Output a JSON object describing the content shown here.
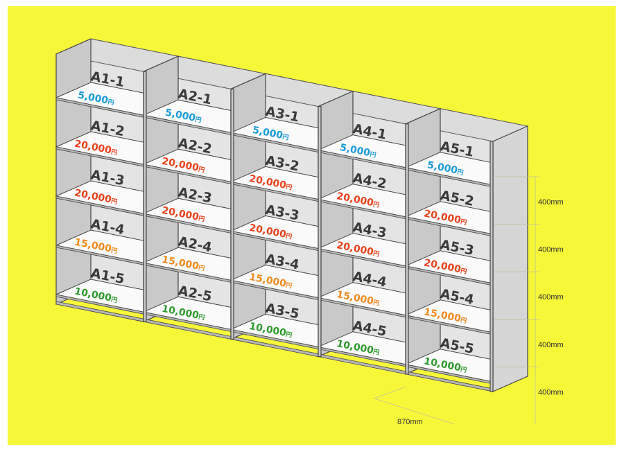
{
  "colors": {
    "background": "#f7f73a",
    "frame": "#ffffff",
    "price_5000": "#1a9bd7",
    "price_20000": "#e8421c",
    "price_15000": "#f0891e",
    "price_10000": "#2e9a2e"
  },
  "units": [
    {
      "id": "A1",
      "cells": [
        {
          "code": "A1-1",
          "price": "5,000",
          "tier": "price_5000"
        },
        {
          "code": "A1-2",
          "price": "20,000",
          "tier": "price_20000"
        },
        {
          "code": "A1-3",
          "price": "20,000",
          "tier": "price_20000"
        },
        {
          "code": "A1-4",
          "price": "15,000",
          "tier": "price_15000"
        },
        {
          "code": "A1-5",
          "price": "10,000",
          "tier": "price_10000"
        }
      ]
    },
    {
      "id": "A2",
      "cells": [
        {
          "code": "A2-1",
          "price": "5,000",
          "tier": "price_5000"
        },
        {
          "code": "A2-2",
          "price": "20,000",
          "tier": "price_20000"
        },
        {
          "code": "A2-3",
          "price": "20,000",
          "tier": "price_20000"
        },
        {
          "code": "A2-4",
          "price": "15,000",
          "tier": "price_15000"
        },
        {
          "code": "A2-5",
          "price": "10,000",
          "tier": "price_10000"
        }
      ]
    },
    {
      "id": "A3",
      "cells": [
        {
          "code": "A3-1",
          "price": "5,000",
          "tier": "price_5000"
        },
        {
          "code": "A3-2",
          "price": "20,000",
          "tier": "price_20000"
        },
        {
          "code": "A3-3",
          "price": "20,000",
          "tier": "price_20000"
        },
        {
          "code": "A3-4",
          "price": "15,000",
          "tier": "price_15000"
        },
        {
          "code": "A3-5",
          "price": "10,000",
          "tier": "price_10000"
        }
      ]
    },
    {
      "id": "A4",
      "cells": [
        {
          "code": "A4-1",
          "price": "5,000",
          "tier": "price_5000"
        },
        {
          "code": "A4-2",
          "price": "20,000",
          "tier": "price_20000"
        },
        {
          "code": "A4-3",
          "price": "20,000",
          "tier": "price_20000"
        },
        {
          "code": "A4-4",
          "price": "15,000",
          "tier": "price_15000"
        },
        {
          "code": "A4-5",
          "price": "10,000",
          "tier": "price_10000"
        }
      ]
    },
    {
      "id": "A5",
      "cells": [
        {
          "code": "A5-1",
          "price": "5,000",
          "tier": "price_5000"
        },
        {
          "code": "A5-2",
          "price": "20,000",
          "tier": "price_20000"
        },
        {
          "code": "A5-3",
          "price": "20,000",
          "tier": "price_20000"
        },
        {
          "code": "A5-4",
          "price": "15,000",
          "tier": "price_15000"
        },
        {
          "code": "A5-5",
          "price": "10,000",
          "tier": "price_10000"
        }
      ]
    }
  ],
  "currency_suffix": "円",
  "dimensions": {
    "row_heights": [
      "400mm",
      "400mm",
      "400mm",
      "400mm",
      "400mm"
    ],
    "unit_width": "870mm"
  }
}
